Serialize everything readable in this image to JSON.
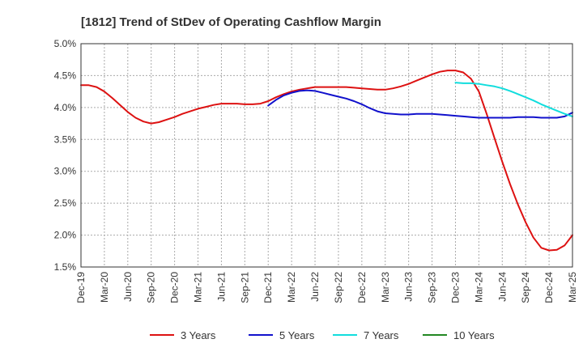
{
  "chart_data": {
    "type": "line",
    "title": "[1812]  Trend of StDev of Operating Cashflow Margin",
    "xlabel": "",
    "ylabel": "",
    "ylim": [
      1.5,
      5.0
    ],
    "yticks": [
      1.5,
      2.0,
      2.5,
      3.0,
      3.5,
      4.0,
      4.5,
      5.0
    ],
    "ytick_labels": [
      "1.5%",
      "2.0%",
      "2.5%",
      "3.0%",
      "3.5%",
      "4.0%",
      "4.5%",
      "5.0%"
    ],
    "x_tick_labels": [
      "Dec-19",
      "Mar-20",
      "Jun-20",
      "Sep-20",
      "Dec-20",
      "Mar-21",
      "Jun-21",
      "Sep-21",
      "Dec-21",
      "Mar-22",
      "Jun-22",
      "Sep-22",
      "Dec-22",
      "Mar-23",
      "Jun-23",
      "Sep-23",
      "Dec-23",
      "Mar-24",
      "Jun-24",
      "Sep-24",
      "Dec-24",
      "Mar-25"
    ],
    "x_unit": "months since Dec-19",
    "xlim": [
      0,
      63
    ],
    "grid": true,
    "legend_position": "bottom",
    "series": [
      {
        "name": "3 Years",
        "color": "#dd1111",
        "x": [
          0,
          1,
          2,
          3,
          4,
          5,
          6,
          7,
          8,
          9,
          10,
          11,
          12,
          13,
          14,
          15,
          16,
          17,
          18,
          19,
          20,
          21,
          22,
          23,
          24,
          25,
          26,
          27,
          28,
          29,
          30,
          31,
          32,
          33,
          34,
          35,
          36,
          37,
          38,
          39,
          40,
          41,
          42,
          43,
          44,
          45,
          46,
          47,
          48,
          49,
          50,
          51,
          52,
          53,
          54,
          55,
          56,
          57,
          58,
          59,
          60,
          61,
          62,
          63
        ],
        "values": [
          4.35,
          4.35,
          4.32,
          4.25,
          4.15,
          4.04,
          3.93,
          3.84,
          3.78,
          3.75,
          3.77,
          3.81,
          3.85,
          3.9,
          3.94,
          3.98,
          4.01,
          4.04,
          4.06,
          4.06,
          4.06,
          4.05,
          4.05,
          4.06,
          4.1,
          4.16,
          4.21,
          4.25,
          4.28,
          4.3,
          4.32,
          4.32,
          4.32,
          4.32,
          4.32,
          4.31,
          4.3,
          4.29,
          4.28,
          4.28,
          4.3,
          4.33,
          4.37,
          4.42,
          4.47,
          4.52,
          4.56,
          4.58,
          4.58,
          4.55,
          4.45,
          4.25,
          3.9,
          3.52,
          3.15,
          2.8,
          2.48,
          2.2,
          1.96,
          1.8,
          1.76,
          1.77,
          1.84,
          2.0
        ]
      },
      {
        "name": "5 Years",
        "color": "#1111cc",
        "x": [
          24,
          25,
          26,
          27,
          28,
          29,
          30,
          31,
          32,
          33,
          34,
          35,
          36,
          37,
          38,
          39,
          40,
          41,
          42,
          43,
          44,
          45,
          46,
          47,
          48,
          49,
          50,
          51,
          52,
          53,
          54,
          55,
          56,
          57,
          58,
          59,
          60,
          61,
          62,
          63
        ],
        "values": [
          4.03,
          4.12,
          4.19,
          4.23,
          4.26,
          4.27,
          4.26,
          4.23,
          4.2,
          4.17,
          4.14,
          4.1,
          4.05,
          3.99,
          3.94,
          3.91,
          3.9,
          3.89,
          3.89,
          3.9,
          3.9,
          3.9,
          3.89,
          3.88,
          3.87,
          3.86,
          3.85,
          3.84,
          3.84,
          3.84,
          3.84,
          3.84,
          3.85,
          3.85,
          3.85,
          3.84,
          3.84,
          3.84,
          3.86,
          3.92
        ]
      },
      {
        "name": "7 Years",
        "color": "#11dddd",
        "x": [
          48,
          49,
          50,
          51,
          52,
          53,
          54,
          55,
          56,
          57,
          58,
          59,
          60,
          61,
          62,
          63
        ],
        "values": [
          4.39,
          4.38,
          4.38,
          4.37,
          4.35,
          4.33,
          4.3,
          4.26,
          4.21,
          4.16,
          4.11,
          4.05,
          4.0,
          3.95,
          3.9,
          3.86
        ]
      },
      {
        "name": "10 Years",
        "color": "#228822",
        "x": [],
        "values": []
      }
    ]
  }
}
